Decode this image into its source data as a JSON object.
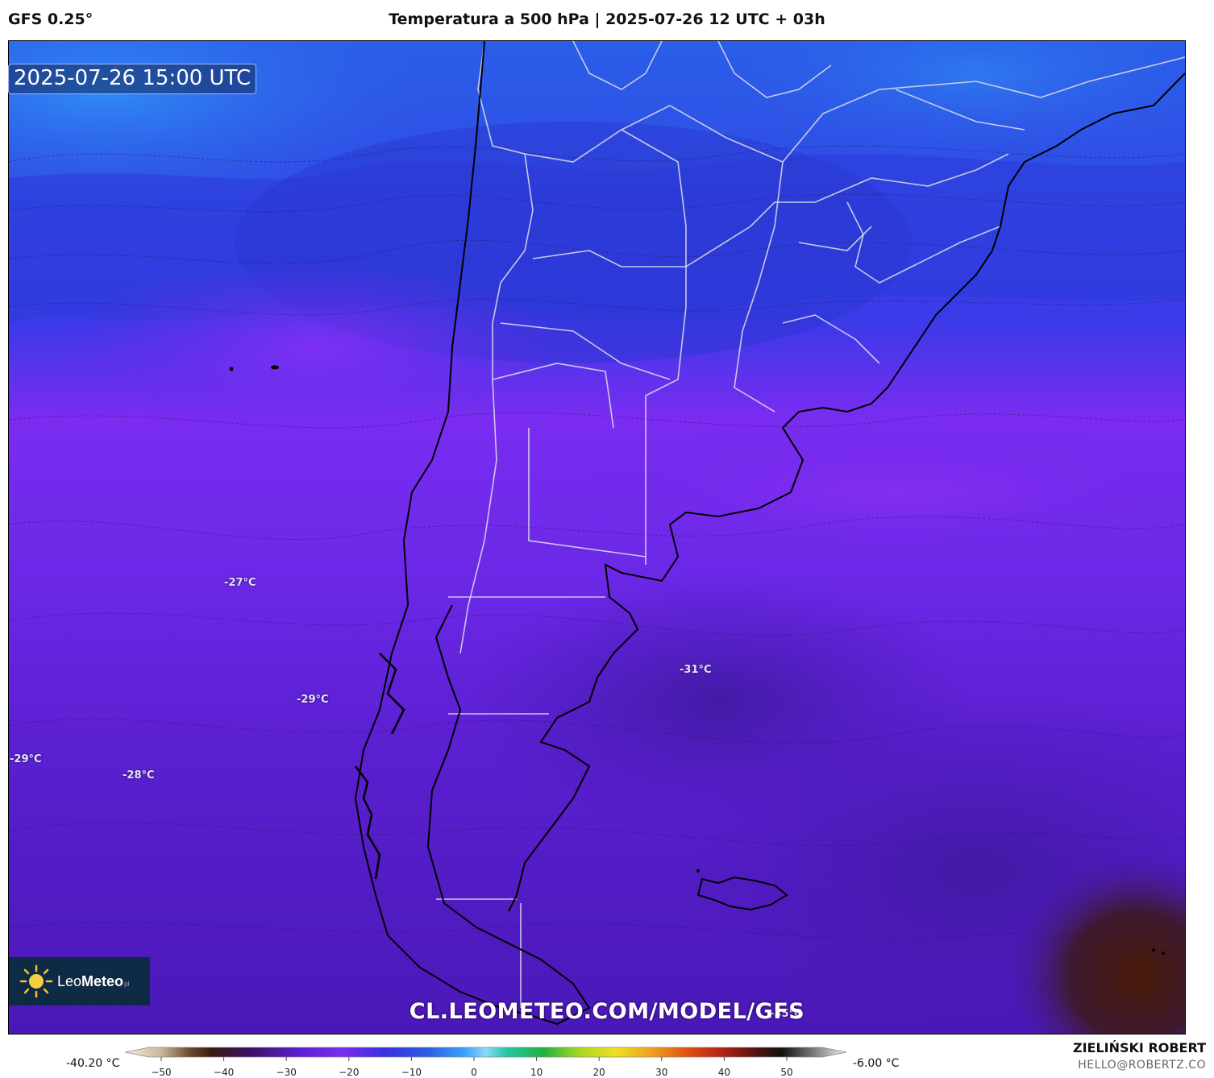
{
  "header": {
    "model": "GFS 0.25°",
    "title": "Temperatura a 500 hPa | 2025-07-26 12 UTC + 03h"
  },
  "map": {
    "valid_time": "2025-07-26 15:00 UTC",
    "watermark": "CL.LEOMETEO.COM/MODEL/GFS",
    "temperature_labels": [
      {
        "id": "t1",
        "text": "-27°C"
      },
      {
        "id": "t2",
        "text": "-29°C"
      },
      {
        "id": "t3",
        "text": "-29°C"
      },
      {
        "id": "t4",
        "text": "-28°C"
      },
      {
        "id": "t5",
        "text": "-31°C"
      },
      {
        "id": "t6",
        "text": "-35°C"
      }
    ]
  },
  "logo": {
    "brand_light": "Leo",
    "brand_bold": "Meteo",
    "suffix": "pl"
  },
  "colorbar": {
    "min_label": "-40.20 °C",
    "max_label": "-6.00 °C",
    "ticks": [
      "−50",
      "−40",
      "−30",
      "−20",
      "−10",
      "0",
      "10",
      "20",
      "30",
      "40",
      "50"
    ],
    "range": [
      -50,
      55
    ]
  },
  "credits": {
    "name": "ZIELIŃSKI ROBERT",
    "email": "HELLO@ROBERTZ.CO"
  }
}
